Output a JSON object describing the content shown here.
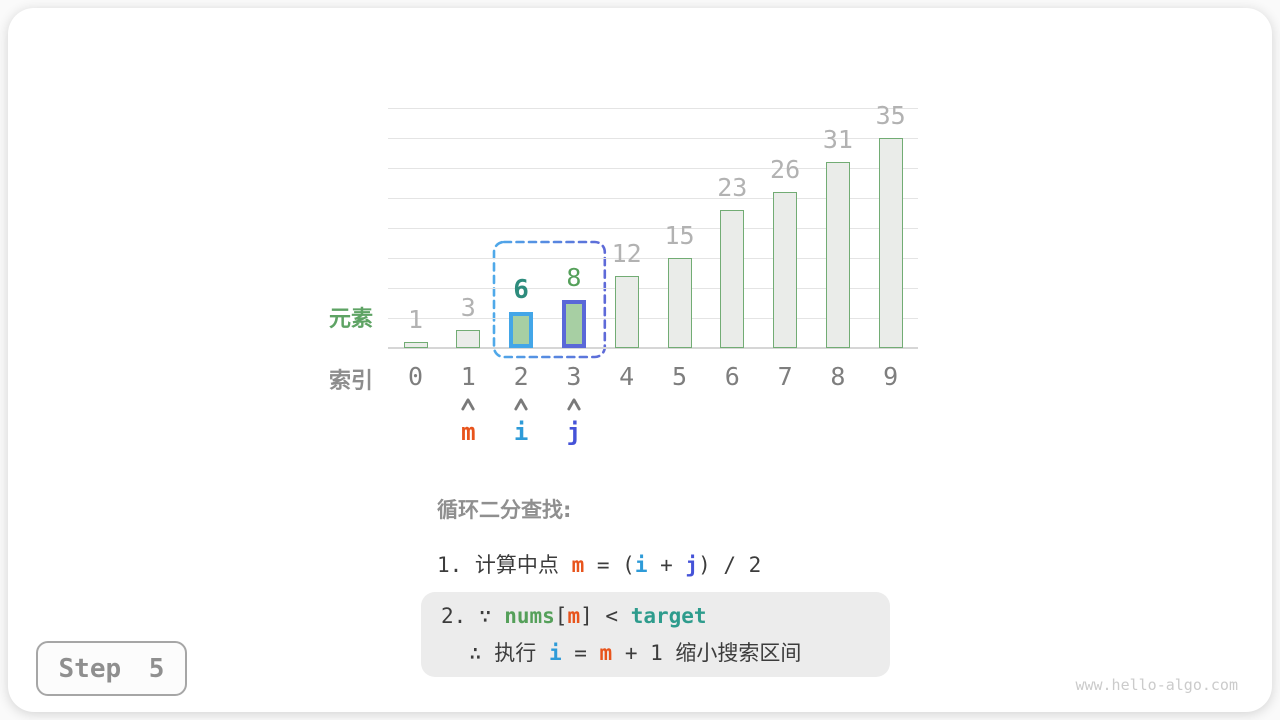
{
  "page": {
    "step_badge": "Step 5",
    "watermark": "www.hello-algo.com"
  },
  "colors": {
    "bar_fill": "#EAECE9",
    "bar_border": "#72AC74",
    "highlight_fill": "#A7CFA3",
    "value_label_gray": "#B2B2B2",
    "index_label_gray": "#7E7E7E",
    "arrow_gray": "#7A7A7A",
    "orange_m": "#E8541C",
    "azure_i": "#2E9BD8",
    "indigo_j": "#4553D8",
    "green_nums": "#55A05A",
    "teal_target": "#2E9C8D",
    "text_dark": "#3C3C3C",
    "heading_gray": "#8F8F8F"
  },
  "chart_data": {
    "type": "bar",
    "title": "",
    "categories": [
      "0",
      "1",
      "2",
      "3",
      "4",
      "5",
      "6",
      "7",
      "8",
      "9"
    ],
    "values": [
      1,
      3,
      6,
      8,
      12,
      15,
      23,
      26,
      31,
      35
    ],
    "xlabel": "索引",
    "ylabel": "元素",
    "ylim": [
      0,
      40
    ],
    "grid_step": 5,
    "grid": "horizontal",
    "legend": "none",
    "highlights": [
      {
        "index": 2,
        "border_color": "#43A6E8",
        "fill_color": "#A7CFA3",
        "label_color": "#2E8C7D",
        "label_bold": true
      },
      {
        "index": 3,
        "border_color": "#5A68D8",
        "fill_color": "#A7CFA3",
        "label_color": "#55A05A",
        "label_bold": false
      }
    ],
    "selection_box": {
      "from_index": 2,
      "to_index": 3,
      "color_left": "#4FA9E9",
      "color_right": "#5E6AD8",
      "style": "dashed"
    },
    "pointers": [
      {
        "label": "m",
        "index": 1,
        "color": "#E8541C"
      },
      {
        "label": "i",
        "index": 2,
        "color": "#2E9BD8"
      },
      {
        "label": "j",
        "index": 3,
        "color": "#4553D8"
      }
    ]
  },
  "annotation": {
    "heading": "循环二分查找:",
    "line1_tokens": [
      {
        "text": "1. 计算中点 ",
        "color": "#3C3C3C",
        "bold": false
      },
      {
        "text": "m",
        "color": "#E8541C",
        "bold": true
      },
      {
        "text": " = (",
        "color": "#3C3C3C",
        "bold": false
      },
      {
        "text": "i",
        "color": "#2E9BD8",
        "bold": true
      },
      {
        "text": " + ",
        "color": "#3C3C3C",
        "bold": false
      },
      {
        "text": "j",
        "color": "#4553D8",
        "bold": true
      },
      {
        "text": ") / 2",
        "color": "#3C3C3C",
        "bold": false
      }
    ],
    "box_line1_tokens": [
      {
        "text": "2. ∵ ",
        "color": "#3C3C3C",
        "bold": false
      },
      {
        "text": "nums",
        "color": "#55A05A",
        "bold": true
      },
      {
        "text": "[",
        "color": "#3C3C3C",
        "bold": false
      },
      {
        "text": "m",
        "color": "#E8541C",
        "bold": true
      },
      {
        "text": "] < ",
        "color": "#3C3C3C",
        "bold": false
      },
      {
        "text": "target",
        "color": "#2E9C8D",
        "bold": true
      }
    ],
    "box_line2_tokens": [
      {
        "text": "∴ 执行 ",
        "color": "#3C3C3C",
        "bold": false
      },
      {
        "text": "i",
        "color": "#2E9BD8",
        "bold": true
      },
      {
        "text": " = ",
        "color": "#3C3C3C",
        "bold": false
      },
      {
        "text": "m",
        "color": "#E8541C",
        "bold": true
      },
      {
        "text": " + 1 缩小搜索区间",
        "color": "#3C3C3C",
        "bold": false
      }
    ]
  }
}
